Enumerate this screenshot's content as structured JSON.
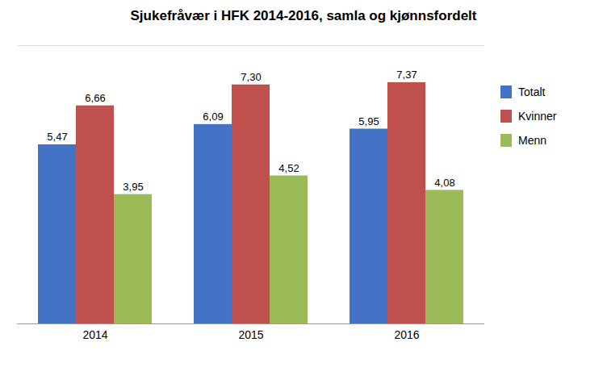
{
  "chart_data": {
    "type": "bar",
    "title": "Sjukefråvær i HFK 2014-2016, samla og kjønnsfordelt",
    "categories": [
      "2014",
      "2015",
      "2016"
    ],
    "series": [
      {
        "name": "Totalt",
        "color": "#4472C4",
        "values": [
          5.47,
          6.09,
          5.95
        ],
        "value_labels": [
          "5,47",
          "6,09",
          "5,95"
        ]
      },
      {
        "name": "Kvinner",
        "color": "#C0504D",
        "values": [
          6.66,
          7.3,
          7.37
        ],
        "value_labels": [
          "6,66",
          "7,30",
          "7,37"
        ]
      },
      {
        "name": "Menn",
        "color": "#9BBB59",
        "values": [
          3.95,
          4.52,
          4.08
        ],
        "value_labels": [
          "3,95",
          "4,52",
          "4,08"
        ]
      }
    ],
    "ylim": [
      0,
      8.5
    ],
    "grid": false,
    "legend": "right",
    "data_labels": true,
    "tick_labels": "x"
  }
}
